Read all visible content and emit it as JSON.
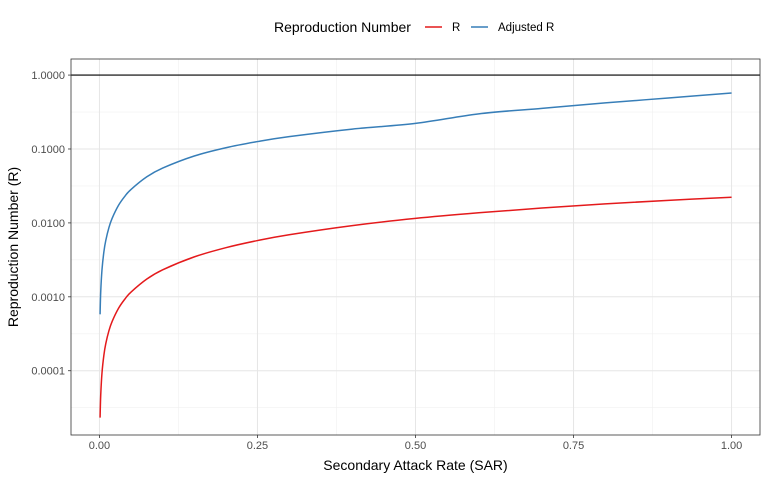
{
  "chart_data": {
    "type": "line",
    "xlabel": "Secondary Attack Rate (SAR)",
    "ylabel": "Reproduction Number (R)",
    "xlim": [
      -0.045,
      1.045
    ],
    "ylim": [
      1.35e-05,
      1.65
    ],
    "y_scale": "log10",
    "x_ticks": [
      0,
      0.25,
      0.5,
      0.75,
      1
    ],
    "x_tick_labels": [
      "0.00",
      "0.25",
      "0.50",
      "0.75",
      "1.00"
    ],
    "y_ticks": [
      0.0001,
      0.001,
      0.01,
      0.1,
      1
    ],
    "y_tick_labels": [
      "0.0001",
      "0.0010",
      "0.0100",
      "0.1000",
      "1.0000"
    ],
    "grid": true,
    "legend": {
      "title": "Reproduction Number",
      "position": "top",
      "entries": [
        {
          "name": "R",
          "color": "#E41A1C"
        },
        {
          "name": "Adjusted R",
          "color": "#377EB8"
        }
      ]
    },
    "reference_line": {
      "y": 1,
      "color": "#000000"
    },
    "series": [
      {
        "name": "R",
        "color": "#E41A1C",
        "x": [
          0.001,
          0.002,
          0.004,
          0.007,
          0.01,
          0.015,
          0.02,
          0.03,
          0.04,
          0.05,
          0.075,
          0.1,
          0.15,
          0.2,
          0.25,
          0.3,
          0.4,
          0.5,
          0.6,
          0.7,
          0.8,
          0.9,
          1.0
        ],
        "y": [
          2.32e-05,
          4.63e-05,
          9.27e-05,
          0.000162,
          0.000232,
          0.000348,
          0.000463,
          0.000695,
          0.000927,
          0.00116,
          0.00174,
          0.00232,
          0.00347,
          0.00462,
          0.00577,
          0.00692,
          0.0092,
          0.0115,
          0.0137,
          0.0159,
          0.0181,
          0.0202,
          0.0222
        ]
      },
      {
        "name": "Adjusted R",
        "color": "#377EB8",
        "x": [
          0.001,
          0.002,
          0.004,
          0.007,
          0.01,
          0.015,
          0.02,
          0.03,
          0.04,
          0.05,
          0.075,
          0.1,
          0.15,
          0.2,
          0.25,
          0.3,
          0.4,
          0.5,
          0.6,
          0.7,
          0.8,
          0.9,
          1.0
        ],
        "y": [
          0.00058,
          0.00116,
          0.00231,
          0.00405,
          0.00578,
          0.00865,
          0.0115,
          0.0172,
          0.0228,
          0.0284,
          0.0421,
          0.0552,
          0.0804,
          0.104,
          0.126,
          0.147,
          0.186,
          0.222,
          0.299,
          0.355,
          0.42,
          0.49,
          0.572
        ]
      }
    ]
  }
}
